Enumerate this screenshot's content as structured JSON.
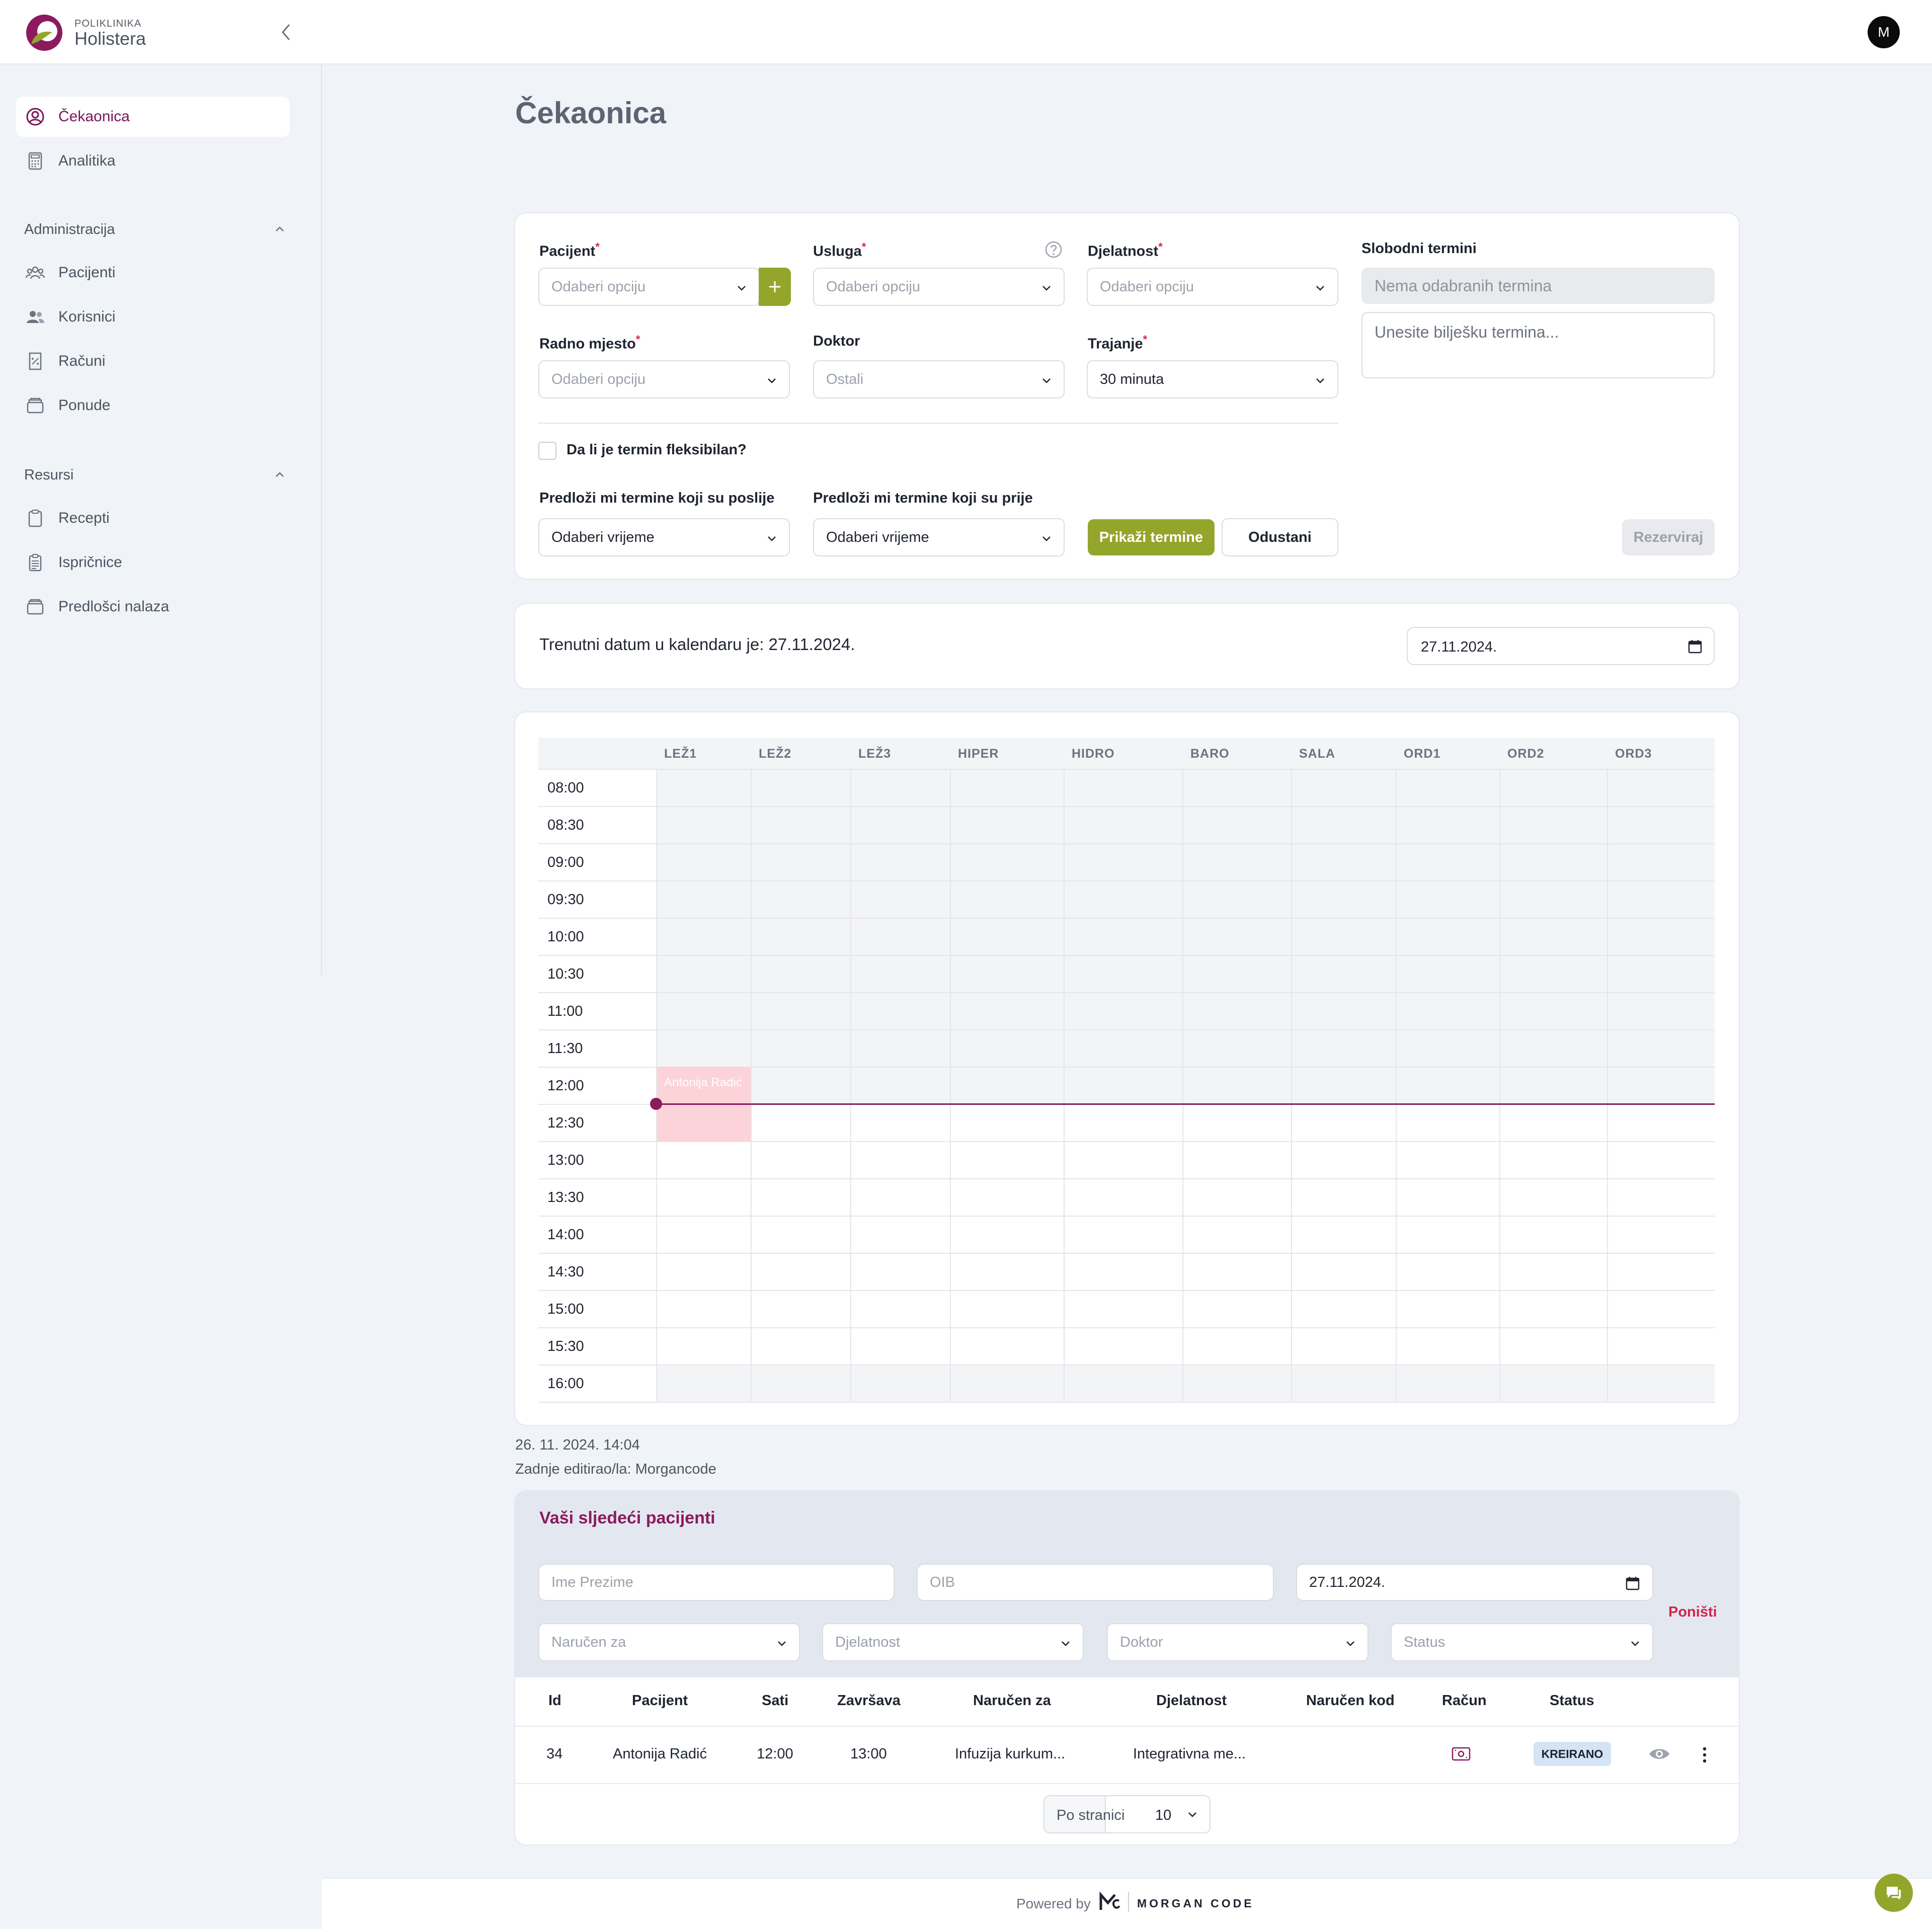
{
  "header": {
    "brand_small": "POLIKLINIKA",
    "brand_name": "Holistera",
    "avatar_initial": "M"
  },
  "sidebar": {
    "items": [
      {
        "label": "Čekaonica",
        "icon": "user-circle-icon"
      },
      {
        "label": "Analitika",
        "icon": "calculator-icon"
      }
    ],
    "admin_title": "Administracija",
    "admin_items": [
      {
        "label": "Pacijenti",
        "icon": "users-icon"
      },
      {
        "label": "Korisnici",
        "icon": "user-group-icon"
      },
      {
        "label": "Računi",
        "icon": "receipt-icon"
      },
      {
        "label": "Ponude",
        "icon": "archive-icon"
      }
    ],
    "resources_title": "Resursi",
    "resource_items": [
      {
        "label": "Recepti",
        "icon": "clipboard-icon"
      },
      {
        "label": "Ispričnice",
        "icon": "document-icon"
      },
      {
        "label": "Predlošci nalaza",
        "icon": "archive-icon"
      }
    ]
  },
  "page": {
    "title": "Čekaonica"
  },
  "form": {
    "patient_label": "Pacijent",
    "patient_placeholder": "Odaberi opciju",
    "service_label": "Usluga",
    "service_placeholder": "Odaberi opciju",
    "activity_label": "Djelatnost",
    "activity_placeholder": "Odaberi opciju",
    "free_slots_label": "Slobodni termini",
    "free_slots_value": "Nema odabranih termina",
    "note_placeholder": "Unesite bilješku termina...",
    "workplace_label": "Radno mjesto",
    "workplace_placeholder": "Odaberi opciju",
    "doctor_label": "Doktor",
    "doctor_value": "Ostali",
    "duration_label": "Trajanje",
    "duration_value": "30 minuta",
    "flexible_label": "Da li je termin fleksibilan?",
    "after_label": "Predloži mi termine koji su poslije",
    "after_value": "Odaberi vrijeme",
    "before_label": "Predloži mi termine koji su prije",
    "before_value": "Odaberi vrijeme",
    "show_button": "Prikaži termine",
    "cancel_button": "Odustani",
    "reserve_button": "Rezerviraj"
  },
  "calendar_date": {
    "text": "Trenutni datum u kalendaru je: 27.11.2024.",
    "input_value": "27.11.2024."
  },
  "schedule": {
    "columns": [
      "LEŽ1",
      "LEŽ2",
      "LEŽ3",
      "HIPER",
      "HIDRO",
      "BARO",
      "SALA",
      "ORD1",
      "ORD2",
      "ORD3"
    ],
    "times": [
      "08:00",
      "08:30",
      "09:00",
      "09:30",
      "10:00",
      "10:30",
      "11:00",
      "11:30",
      "12:00",
      "12:30",
      "13:00",
      "13:30",
      "14:00",
      "14:30",
      "15:00",
      "15:30",
      "16:00"
    ],
    "appointment": {
      "label": "Antonija Radić",
      "column": "LEŽ1",
      "start": "12:00",
      "end": "13:00"
    },
    "now_time": "12:30",
    "colors": {
      "appointment": "#fcd3d8",
      "now_line": "#8b1a5e",
      "past": "#f3f4f6"
    }
  },
  "meta": {
    "edited_at": "26. 11. 2024. 14:04",
    "edited_by": "Zadnje editirao/la: Morgancode"
  },
  "next_patients": {
    "title": "Vaši sljedeći pacijenti",
    "filters": {
      "name_placeholder": "Ime Prezime",
      "oib_placeholder": "OIB",
      "date_value": "27.11.2024.",
      "reset": "Poništi",
      "ordered_for": "Naručen za",
      "activity": "Djelatnost",
      "doctor": "Doktor",
      "status": "Status"
    },
    "headers": [
      "Id",
      "Pacijent",
      "Sati",
      "Završava",
      "Naručen za",
      "Djelatnost",
      "Naručen kod",
      "Račun",
      "Status"
    ],
    "rows": [
      {
        "id": "34",
        "patient": "Antonija Radić",
        "time": "12:00",
        "ends": "13:00",
        "ordered_for": "Infuzija kurkum...",
        "activity": "Integrativna me...",
        "ordered_by": "",
        "status": "KREIRANO"
      }
    ],
    "pagination": {
      "label": "Po stranici",
      "value": "10"
    }
  },
  "footer": {
    "powered_by": "Powered by",
    "company": "MORGAN CODE"
  },
  "theme": {
    "brand": "#7a1556",
    "accent": "#94a52c",
    "danger": "#d3264a"
  }
}
